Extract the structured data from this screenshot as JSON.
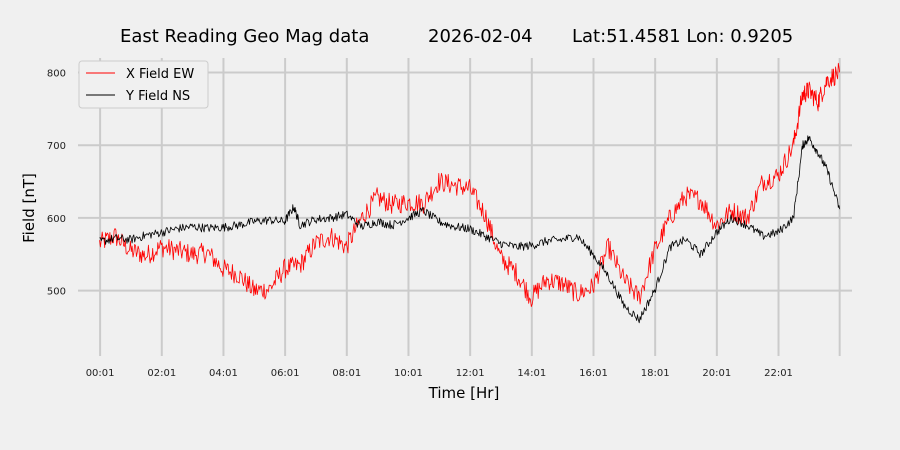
{
  "chart_data": {
    "type": "line",
    "title_main": "East Reading Geo Mag data",
    "title_date": "2026-02-04",
    "title_coords": "Lat:51.4581  Lon: 0.9205",
    "xlabel": "Time  [Hr]",
    "ylabel": "Field  [nT]",
    "xlim": [
      -0.7,
      24.4
    ],
    "ylim": [
      410,
      820
    ],
    "x_ticks": [
      {
        "x": 0.017,
        "label": "00:01"
      },
      {
        "x": 2.017,
        "label": "02:01"
      },
      {
        "x": 4.017,
        "label": "04:01"
      },
      {
        "x": 6.017,
        "label": "06:01"
      },
      {
        "x": 8.017,
        "label": "08:01"
      },
      {
        "x": 10.017,
        "label": "10:01"
      },
      {
        "x": 12.017,
        "label": "12:01"
      },
      {
        "x": 14.017,
        "label": "14:01"
      },
      {
        "x": 16.017,
        "label": "16:01"
      },
      {
        "x": 18.017,
        "label": "18:01"
      },
      {
        "x": 20.017,
        "label": "20:01"
      },
      {
        "x": 22.017,
        "label": "22:01"
      },
      {
        "x": 24.0,
        "label": ""
      }
    ],
    "y_ticks": [
      500,
      600,
      700,
      800
    ],
    "grid": true,
    "legend_position": "top-left",
    "series": [
      {
        "name": "X Field EW",
        "color": "#ff0000",
        "points": [
          [
            0.0,
            565
          ],
          [
            0.5,
            575
          ],
          [
            1.0,
            555
          ],
          [
            1.5,
            548
          ],
          [
            2.0,
            560
          ],
          [
            2.5,
            555
          ],
          [
            3.0,
            550
          ],
          [
            3.5,
            552
          ],
          [
            4.0,
            530
          ],
          [
            4.5,
            522
          ],
          [
            5.0,
            500
          ],
          [
            5.5,
            502
          ],
          [
            6.0,
            530
          ],
          [
            6.5,
            535
          ],
          [
            7.0,
            565
          ],
          [
            7.5,
            575
          ],
          [
            8.0,
            560
          ],
          [
            8.5,
            600
          ],
          [
            9.0,
            628
          ],
          [
            9.5,
            618
          ],
          [
            10.0,
            622
          ],
          [
            10.5,
            620
          ],
          [
            11.0,
            650
          ],
          [
            11.5,
            645
          ],
          [
            12.0,
            640
          ],
          [
            12.5,
            605
          ],
          [
            13.0,
            545
          ],
          [
            13.5,
            525
          ],
          [
            14.0,
            490
          ],
          [
            14.5,
            515
          ],
          [
            15.0,
            510
          ],
          [
            15.5,
            495
          ],
          [
            16.0,
            505
          ],
          [
            16.5,
            560
          ],
          [
            17.0,
            515
          ],
          [
            17.5,
            490
          ],
          [
            18.0,
            555
          ],
          [
            18.5,
            600
          ],
          [
            19.0,
            630
          ],
          [
            19.5,
            625
          ],
          [
            20.0,
            590
          ],
          [
            20.5,
            610
          ],
          [
            21.0,
            600
          ],
          [
            21.5,
            650
          ],
          [
            22.0,
            658
          ],
          [
            22.5,
            700
          ],
          [
            22.8,
            770
          ],
          [
            23.0,
            775
          ],
          [
            23.3,
            760
          ],
          [
            23.6,
            790
          ],
          [
            24.0,
            800
          ]
        ]
      },
      {
        "name": "Y Field NS",
        "color": "#000000",
        "points": [
          [
            0.0,
            567
          ],
          [
            0.5,
            572
          ],
          [
            1.0,
            570
          ],
          [
            1.5,
            576
          ],
          [
            2.0,
            580
          ],
          [
            2.5,
            585
          ],
          [
            3.0,
            588
          ],
          [
            3.5,
            586
          ],
          [
            4.0,
            587
          ],
          [
            4.5,
            590
          ],
          [
            5.0,
            595
          ],
          [
            5.5,
            597
          ],
          [
            6.0,
            595
          ],
          [
            6.3,
            615
          ],
          [
            6.5,
            590
          ],
          [
            7.0,
            598
          ],
          [
            7.5,
            600
          ],
          [
            8.0,
            605
          ],
          [
            8.5,
            588
          ],
          [
            9.0,
            595
          ],
          [
            9.5,
            590
          ],
          [
            10.0,
            600
          ],
          [
            10.5,
            610
          ],
          [
            11.0,
            595
          ],
          [
            11.5,
            588
          ],
          [
            12.0,
            585
          ],
          [
            12.5,
            575
          ],
          [
            13.0,
            565
          ],
          [
            13.5,
            560
          ],
          [
            14.0,
            562
          ],
          [
            14.5,
            568
          ],
          [
            15.0,
            570
          ],
          [
            15.5,
            575
          ],
          [
            16.0,
            550
          ],
          [
            16.5,
            520
          ],
          [
            17.0,
            480
          ],
          [
            17.5,
            460
          ],
          [
            18.0,
            500
          ],
          [
            18.5,
            560
          ],
          [
            19.0,
            570
          ],
          [
            19.5,
            550
          ],
          [
            20.0,
            580
          ],
          [
            20.5,
            600
          ],
          [
            21.0,
            590
          ],
          [
            21.5,
            575
          ],
          [
            22.0,
            580
          ],
          [
            22.5,
            600
          ],
          [
            22.8,
            700
          ],
          [
            23.0,
            710
          ],
          [
            23.3,
            690
          ],
          [
            23.6,
            665
          ],
          [
            24.0,
            612
          ]
        ]
      }
    ]
  }
}
